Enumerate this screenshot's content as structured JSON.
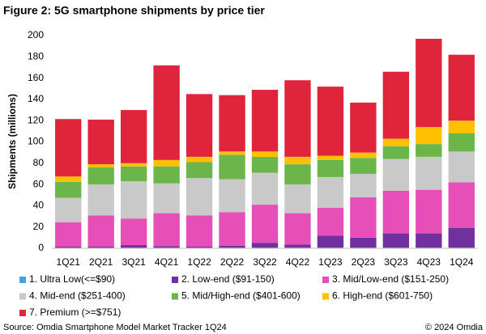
{
  "chart_data": {
    "type": "stacked_bar",
    "title": "Figure 2: 5G smartphone shipments by price tier",
    "y_label": "Shipments (millions)",
    "categories": [
      "1Q21",
      "2Q21",
      "3Q21",
      "4Q21",
      "1Q22",
      "2Q22",
      "3Q22",
      "4Q22",
      "1Q23",
      "2Q23",
      "3Q23",
      "4Q23",
      "1Q24"
    ],
    "series": [
      {
        "name": "1. Ultra Low(<=$90)",
        "color": "#41a4de",
        "values": [
          0.5,
          0.5,
          0.5,
          0.5,
          0.5,
          0.5,
          0.5,
          0.5,
          0.5,
          0.5,
          0.5,
          0.5,
          0.5
        ]
      },
      {
        "name": "2. Low-end ($91-150)",
        "color": "#7030a0",
        "values": [
          1,
          1,
          2.5,
          1.5,
          1,
          2,
          4.5,
          3,
          11.5,
          9.5,
          13.5,
          13.5,
          18.5
        ]
      },
      {
        "name": "3. Mid/Low-end ($151-250)",
        "color": "#e64fb8",
        "values": [
          23,
          29.5,
          25,
          31,
          29.5,
          31.5,
          36,
          29.5,
          26,
          38,
          40,
          41,
          43
        ]
      },
      {
        "name": "4. Mid-end ($251-400)",
        "color": "#c9c9c9",
        "values": [
          23,
          29,
          35,
          28,
          35,
          31,
          30,
          27,
          29,
          22,
          30,
          31,
          29
        ]
      },
      {
        "name": "5. Mid/High-end ($401-600)",
        "color": "#6cb54a",
        "values": [
          15,
          16,
          14,
          16,
          15,
          23,
          15,
          19,
          16,
          15,
          12,
          12,
          17
        ]
      },
      {
        "name": "6. High-end ($601-750)",
        "color": "#ffc000",
        "values": [
          5,
          3,
          3,
          6,
          5,
          3,
          5,
          7,
          4,
          5,
          7,
          16,
          12
        ]
      },
      {
        "name": "7. Premium (>=$751)",
        "color": "#e0243c",
        "values": [
          54,
          42,
          50,
          89,
          59,
          53,
          58,
          72,
          65,
          47,
          63,
          83,
          62
        ]
      }
    ],
    "ylim": [
      0,
      200
    ],
    "yticks": [
      0,
      20,
      40,
      60,
      80,
      100,
      120,
      140,
      160,
      180,
      200
    ],
    "grid": false,
    "source": "Source: Omdia Smartphone Model Market Tracker 1Q24",
    "copyright": "© 2024 Omdia"
  }
}
